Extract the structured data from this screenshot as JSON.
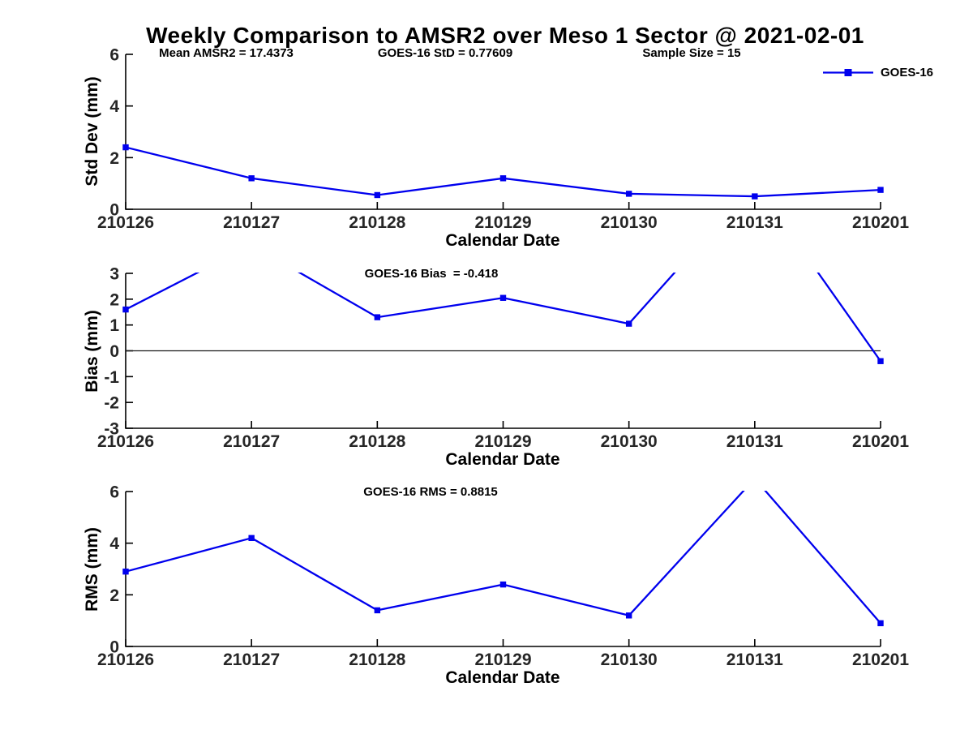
{
  "title": "Weekly Comparison to AMSR2 over Meso 1 Sector @ 2021-02-01",
  "legend": {
    "label": "GOES-16"
  },
  "colors": {
    "line": "#0000EE",
    "axis": "#000000",
    "tick_label": "#262626",
    "zero_line": "#1a1a1a"
  },
  "chart_data": [
    {
      "type": "line",
      "subplot": "std-dev",
      "annotations": [
        "Mean AMSR2 = 17.4373",
        "GOES-16 StD = 0.77609",
        "Sample Size = 15"
      ],
      "categories": [
        "210126",
        "210127",
        "210128",
        "210129",
        "210130",
        "210131",
        "210201"
      ],
      "series": [
        {
          "name": "GOES-16",
          "values": [
            2.4,
            1.2,
            0.55,
            1.2,
            0.6,
            0.5,
            0.75
          ]
        }
      ],
      "xlabel": "Calendar Date",
      "ylabel": "Std Dev (mm)",
      "ylim": [
        0,
        6
      ],
      "yticks": [
        0,
        2,
        4,
        6
      ],
      "zero_line": false,
      "grid": false,
      "marker": "square",
      "legend_position": "top-right"
    },
    {
      "type": "line",
      "subplot": "bias",
      "annotation": "GOES-16 Bias  = -0.418",
      "categories": [
        "210126",
        "210127",
        "210128",
        "210129",
        "210130",
        "210131",
        "210201"
      ],
      "series": [
        {
          "name": "GOES-16",
          "values": [
            1.6,
            4.1,
            1.3,
            2.05,
            1.05,
            6.5,
            -0.4
          ],
          "offscale_clipped_categories": [
            "210127",
            "210131"
          ]
        }
      ],
      "xlabel": "Calendar Date",
      "ylabel": "Bias (mm)",
      "ylim": [
        -3,
        3
      ],
      "yticks": [
        -3,
        -2,
        -1,
        0,
        1,
        2,
        3
      ],
      "zero_line": true,
      "grid": false,
      "marker": "square"
    },
    {
      "type": "line",
      "subplot": "rms",
      "annotation": "GOES-16 RMS = 0.8815",
      "categories": [
        "210126",
        "210127",
        "210128",
        "210129",
        "210130",
        "210131",
        "210201"
      ],
      "series": [
        {
          "name": "GOES-16",
          "values": [
            2.9,
            4.2,
            1.4,
            2.4,
            1.2,
            6.5,
            0.9
          ],
          "offscale_clipped_categories": [
            "210131"
          ]
        }
      ],
      "xlabel": "Calendar Date",
      "ylabel": "RMS (mm)",
      "ylim": [
        0,
        6
      ],
      "yticks": [
        0,
        2,
        4,
        6
      ],
      "zero_line": false,
      "grid": false,
      "marker": "square"
    }
  ]
}
